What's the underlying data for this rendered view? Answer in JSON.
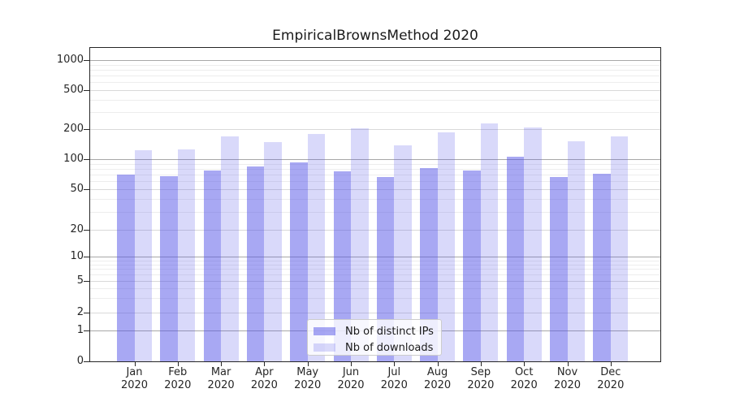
{
  "chart_data": {
    "type": "bar",
    "title": "EmpiricalBrownsMethod 2020",
    "months": [
      "Jan",
      "Feb",
      "Mar",
      "Apr",
      "May",
      "Jun",
      "Jul",
      "Aug",
      "Sep",
      "Oct",
      "Nov",
      "Dec"
    ],
    "year": "2020",
    "xlabel": "",
    "ylabel": "",
    "yscale": "symlog",
    "y_ticks": [
      0,
      1,
      2,
      5,
      10,
      20,
      50,
      100,
      200,
      500,
      1000
    ],
    "ylim": [
      0,
      1340
    ],
    "grid": true,
    "legend_position": "lower center",
    "series": [
      {
        "name": "Nb of distinct IPs",
        "color": "rgba(82,82,232,0.50)",
        "values": [
          70,
          67,
          77,
          84,
          93,
          75,
          66,
          81,
          77,
          105,
          66,
          71
        ]
      },
      {
        "name": "Nb of downloads",
        "color": "rgba(82,82,232,0.22)",
        "values": [
          123,
          126,
          169,
          150,
          179,
          206,
          138,
          185,
          229,
          210,
          153,
          171
        ]
      }
    ]
  },
  "colors": {
    "spine": "#262626",
    "grid_major": "#a8a8a8",
    "grid_minor": "#ededed",
    "text": "#262626"
  }
}
